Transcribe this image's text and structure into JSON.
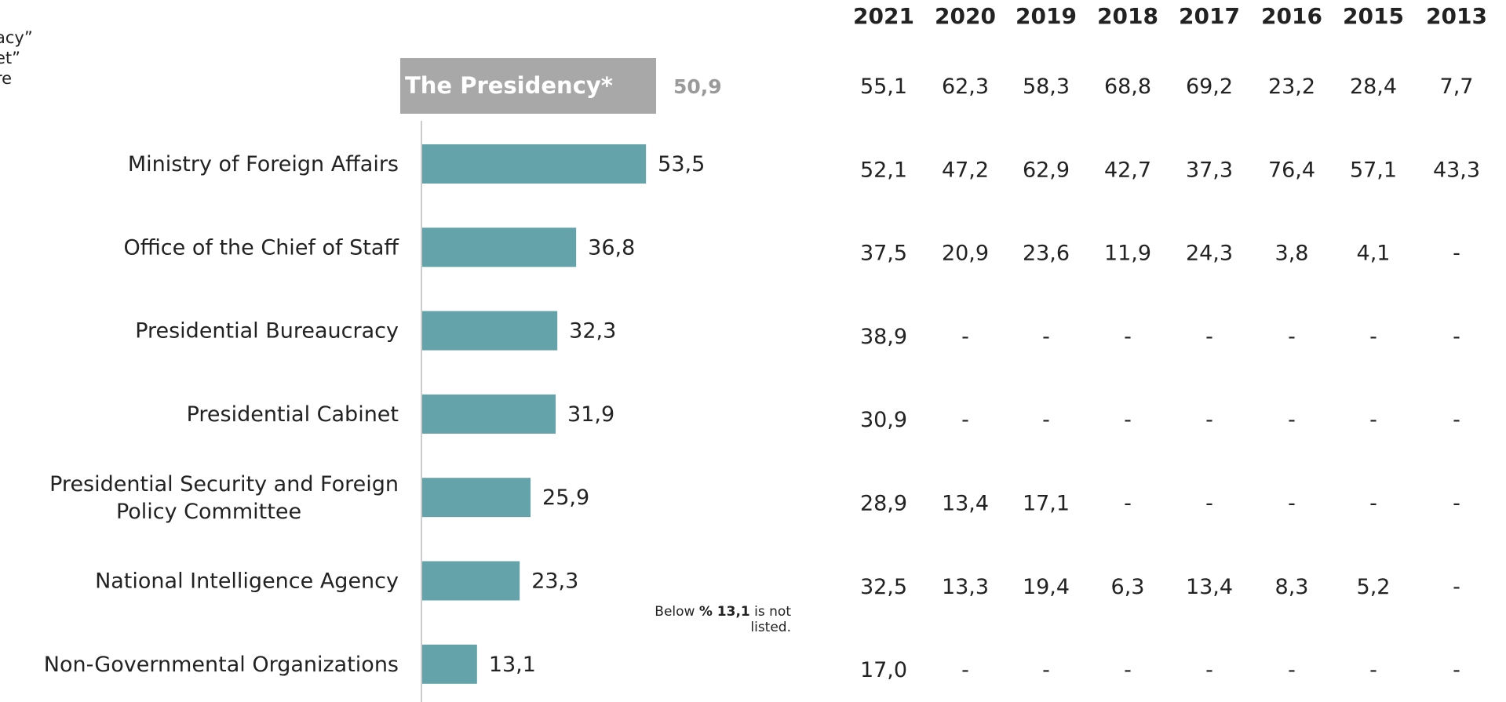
{
  "cut_label_lines": [
    "acy”",
    "et”",
    "re"
  ],
  "highlight": {
    "label": "The Presidency*",
    "value": "50,9"
  },
  "footnote": {
    "prefix": "Below ",
    "bold": "% 13,1",
    "suffix": "  is not listed."
  },
  "colors": {
    "bar": "#65a3aa",
    "highlight_box": "#a8a8a8",
    "highlight_value": "#9a9a9a",
    "axis": "#cccccc"
  },
  "chart_data": {
    "type": "bar",
    "orientation": "horizontal",
    "categories": [
      "Ministry of Foreign Affairs",
      "Office of the Chief of Staff",
      "Presidential Bureaucracy",
      "Presidential Cabinet",
      "Presidential Security and Foreign Policy Committee",
      "National Intelligence Agency",
      "Non-Governmental Organizations"
    ],
    "values": [
      53.5,
      36.8,
      32.3,
      31.9,
      25.9,
      23.3,
      13.1
    ],
    "value_labels": [
      "53,5",
      "36,8",
      "32,3",
      "31,9",
      "25,9",
      "23,3",
      "13,1"
    ],
    "xlim": [
      0,
      55
    ],
    "grid": false,
    "legend": "none",
    "table": {
      "years": [
        "2021",
        "2020",
        "2019",
        "2018",
        "2017",
        "2016",
        "2015",
        "2013"
      ],
      "rows": [
        [
          "55,1",
          "62,3",
          "58,3",
          "68,8",
          "69,2",
          "23,2",
          "28,4",
          "7,7"
        ],
        [
          "52,1",
          "47,2",
          "62,9",
          "42,7",
          "37,3",
          "76,4",
          "57,1",
          "43,3"
        ],
        [
          "37,5",
          "20,9",
          "23,6",
          "11,9",
          "24,3",
          "3,8",
          "4,1",
          "-"
        ],
        [
          "38,9",
          "-",
          "-",
          "-",
          "-",
          "-",
          "-",
          "-"
        ],
        [
          "30,9",
          "-",
          "-",
          "-",
          "-",
          "-",
          "-",
          "-"
        ],
        [
          "28,9",
          "13,4",
          "17,1",
          "-",
          "-",
          "-",
          "-",
          "-"
        ],
        [
          "32,5",
          "13,3",
          "19,4",
          "6,3",
          "13,4",
          "8,3",
          "5,2",
          "-"
        ],
        [
          "17,0",
          "-",
          "-",
          "-",
          "-",
          "-",
          "-",
          "-"
        ]
      ]
    }
  }
}
